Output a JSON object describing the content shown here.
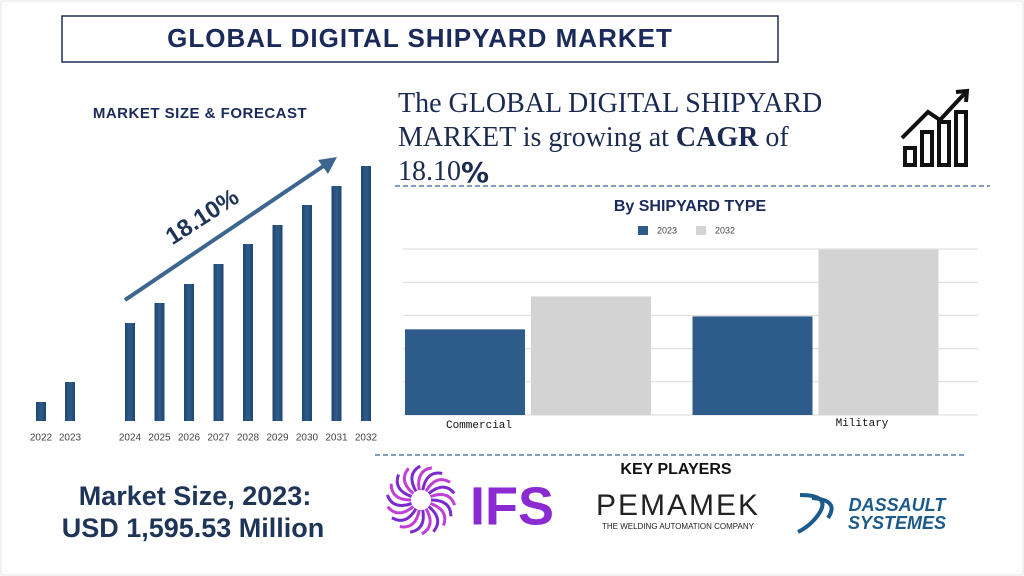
{
  "header": {
    "title": "GLOBAL DIGITAL SHIPYARD MARKET"
  },
  "headline": {
    "text": "The GLOBAL  DIGITAL SHIPYARD MARKET is growing at",
    "emphasis": "CAGR",
    "connector": "of",
    "rate": "18.10%"
  },
  "market_size": {
    "label": "Market Size, 2023:",
    "value": "USD 1,595.53 Million"
  },
  "key_players": {
    "title": "KEY PLAYERS",
    "logos": [
      {
        "name": "IFS"
      },
      {
        "name": "PEMAMEK",
        "tagline": "THE WELDING AUTOMATION COMPANY"
      },
      {
        "name": "DASSAULT",
        "name2": "SYSTEMES"
      }
    ]
  },
  "chart_data": [
    {
      "type": "bar",
      "title": "MARKET SIZE & FORECAST",
      "annotation": "18.10%",
      "color": "#2e5c8a",
      "categories": [
        "2022",
        "2023",
        "2024",
        "2025",
        "2026",
        "2027",
        "2028",
        "2029",
        "2030",
        "2031",
        "2032"
      ],
      "values": [
        19,
        39,
        98,
        118,
        137,
        157,
        177,
        196,
        216,
        235,
        255
      ]
    },
    {
      "type": "grouped-bar",
      "title": "By SHIPYARD TYPE",
      "categories": [
        "Commercial",
        "Military"
      ],
      "series": [
        {
          "name": "2023",
          "color": "#2e5c8a",
          "values": [
            2.58,
            2.97
          ]
        },
        {
          "name": "2032",
          "color": "#d3d3d3",
          "values": [
            3.57,
            4.98
          ]
        }
      ],
      "ylim": [
        0,
        5
      ],
      "yticks": [
        0,
        1,
        2,
        3,
        4,
        5
      ],
      "grid": true
    }
  ]
}
